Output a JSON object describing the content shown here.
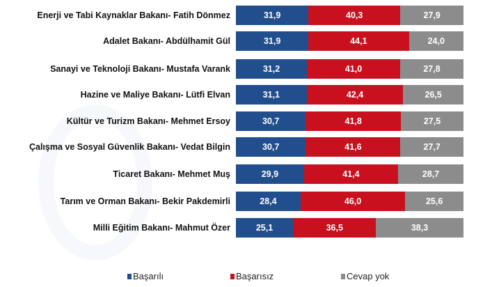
{
  "chart_data": {
    "type": "bar",
    "orientation": "horizontal",
    "stacked": true,
    "categories": [
      "Enerji ve Tabi Kaynaklar Bakanı- Fatih Dönmez",
      "Adalet Bakanı- Abdülhamit Gül",
      "Sanayi ve Teknoloji Bakanı- Mustafa Varank",
      "Hazine ve Maliye Bakanı- Lütfi Elvan",
      "Kültür ve Turizm Bakanı- Mehmet Ersoy",
      "Çalışma ve Sosyal Güvenlik Bakanı- Vedat Bilgin",
      "Ticaret Bakanı- Mehmet Muş",
      "Tarım ve Orman Bakanı- Bekir Pakdemirli",
      "Milli Eğitim Bakanı- Mahmut Özer"
    ],
    "series": [
      {
        "name": "Başarılı",
        "color": "#214e8c",
        "values": [
          31.9,
          31.9,
          31.2,
          31.1,
          30.7,
          30.7,
          29.9,
          28.4,
          25.1
        ],
        "labels": [
          "31,9",
          "31,9",
          "31,2",
          "31,1",
          "30,7",
          "30,7",
          "29,9",
          "28,4",
          "25,1"
        ]
      },
      {
        "name": "Başarısız",
        "color": "#c8101e",
        "values": [
          40.3,
          44.1,
          41.0,
          42.4,
          41.8,
          41.6,
          41.4,
          46.0,
          36.5
        ],
        "labels": [
          "40,3",
          "44,1",
          "41,0",
          "42,4",
          "41,8",
          "41,6",
          "41,4",
          "46,0",
          "36,5"
        ]
      },
      {
        "name": "Cevap yok",
        "color": "#8c8c8c",
        "values": [
          27.9,
          24.0,
          27.8,
          26.5,
          27.5,
          27.7,
          28.7,
          25.6,
          38.3
        ],
        "labels": [
          "27,9",
          "24,0",
          "27,8",
          "26,5",
          "27,5",
          "27,7",
          "28,7",
          "25,6",
          "38,3"
        ]
      }
    ],
    "xlim": [
      0,
      100
    ],
    "legend": "bottom",
    "grid": false
  }
}
